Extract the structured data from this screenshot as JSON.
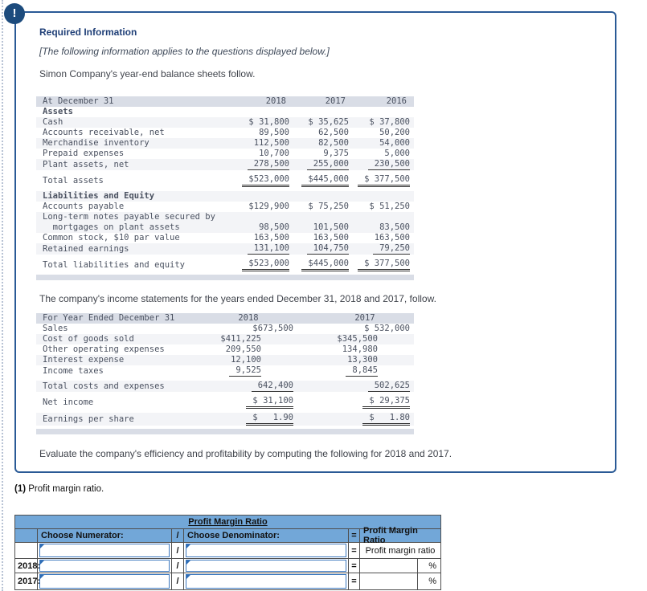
{
  "colors": {
    "panel_border": "#2a5a96",
    "alert_icon_bg": "#1c4b7d",
    "heading_text": "#1f3f77",
    "fin_header_bg": "#d9dde6",
    "row_stripe_bg": "#f3f4f7",
    "question_header_bg": "#72a7d8",
    "input_border": "#3c78bf"
  },
  "alert": {
    "glyph": "!"
  },
  "panel": {
    "heading": "Required Information",
    "notice": "[The following information applies to the questions displayed below.]",
    "balance_intro": "Simon Company's year-end balance sheets follow.",
    "income_intro": "The company's income statements for the years ended December 31, 2018 and 2017, follow.",
    "task": "Evaluate the company's efficiency and profitability by computing the following for 2018 and 2017."
  },
  "balance_sheet": {
    "header_label": "At December 31",
    "years": [
      "2018",
      "2017",
      "2016"
    ],
    "rows": [
      {
        "label": "Assets",
        "values": [
          "",
          "",
          ""
        ]
      },
      {
        "label": "Cash",
        "values": [
          "$ 31,800",
          "$ 35,625",
          "$ 37,800"
        ]
      },
      {
        "label": "Accounts receivable, net",
        "values": [
          "89,500",
          "62,500",
          "50,200"
        ]
      },
      {
        "label": "Merchandise inventory",
        "values": [
          "112,500",
          "82,500",
          "54,000"
        ]
      },
      {
        "label": "Prepaid expenses",
        "values": [
          "10,700",
          "9,375",
          "5,000"
        ]
      },
      {
        "label": "Plant assets, net",
        "values": [
          "278,500",
          "255,000",
          "230,500"
        ]
      },
      {
        "label": "Total assets",
        "values": [
          "$523,000",
          "$445,000",
          "$ 377,500"
        ]
      },
      {
        "label": "Liabilities and Equity",
        "values": [
          "",
          "",
          ""
        ]
      },
      {
        "label": "Accounts payable",
        "values": [
          "$129,900",
          "$ 75,250",
          "$ 51,250"
        ]
      },
      {
        "label": "Long-term notes payable secured by\n  mortgages on plant assets",
        "values": [
          "98,500",
          "101,500",
          "83,500"
        ]
      },
      {
        "label": "Common stock, $10 par value",
        "values": [
          "163,500",
          "163,500",
          "163,500"
        ]
      },
      {
        "label": "Retained earnings",
        "values": [
          "131,100",
          "104,750",
          "79,250"
        ]
      },
      {
        "label": "Total liabilities and equity",
        "values": [
          "$523,000",
          "$445,000",
          "$ 377,500"
        ]
      }
    ]
  },
  "income_statement": {
    "header_label": "For Year Ended December 31",
    "years": [
      "2018",
      "2017"
    ],
    "rows": [
      {
        "label": "Sales",
        "v2018": "$673,500",
        "v2017": "$ 532,000"
      },
      {
        "label": "Cost of goods sold",
        "v2018": "$411,225",
        "v2017": "$345,500"
      },
      {
        "label": "Other operating expenses",
        "v2018": "209,550",
        "v2017": "134,980"
      },
      {
        "label": "Interest expense",
        "v2018": "12,100",
        "v2017": "13,300"
      },
      {
        "label": "Income taxes",
        "v2018": "9,525",
        "v2017": "8,845"
      },
      {
        "label": "Total costs and expenses",
        "v2018": "642,400",
        "v2017": "502,625"
      },
      {
        "label": "Net income",
        "v2018": "$ 31,100",
        "v2017": "$ 29,375"
      },
      {
        "label": "Earnings per share",
        "v2018": "$   1.90",
        "v2017": "$   1.80"
      }
    ]
  },
  "question": {
    "number": "(1)",
    "text": " Profit margin ratio.",
    "table": {
      "title": "Profit Margin Ratio",
      "col_numerator": "Choose Numerator:",
      "slash": "/",
      "col_denominator": "Choose Denominator:",
      "equals": "=",
      "col_result": "Profit Margin Ratio",
      "result_row_label": "Profit margin ratio",
      "row_labels": [
        "2018:",
        "2017:"
      ],
      "percent": "%"
    }
  }
}
